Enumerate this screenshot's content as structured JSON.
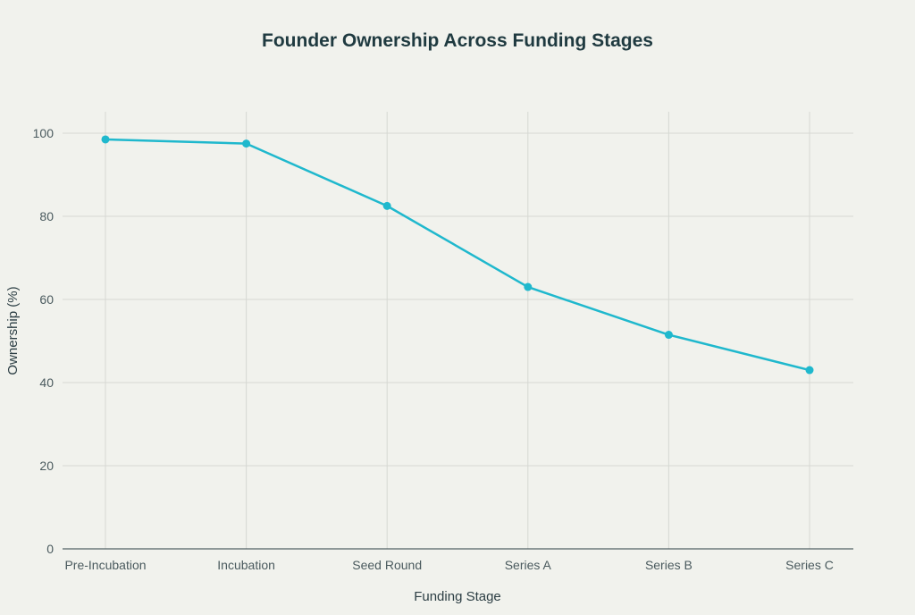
{
  "chart_data": {
    "type": "line",
    "title": "Founder Ownership Across Funding Stages",
    "xlabel": "Funding Stage",
    "ylabel": "Ownership (%)",
    "categories": [
      "Pre-Incubation",
      "Incubation",
      "Seed Round",
      "Series A",
      "Series B",
      "Series C"
    ],
    "series": [
      {
        "name": "Founder Ownership",
        "values": [
          98.5,
          97.5,
          82.5,
          63,
          51.5,
          43
        ],
        "color": "#1fb8cd"
      }
    ],
    "ylim": [
      0,
      105
    ],
    "yticks": [
      0,
      20,
      40,
      60,
      80,
      100
    ],
    "grid": true,
    "legend": "none"
  }
}
